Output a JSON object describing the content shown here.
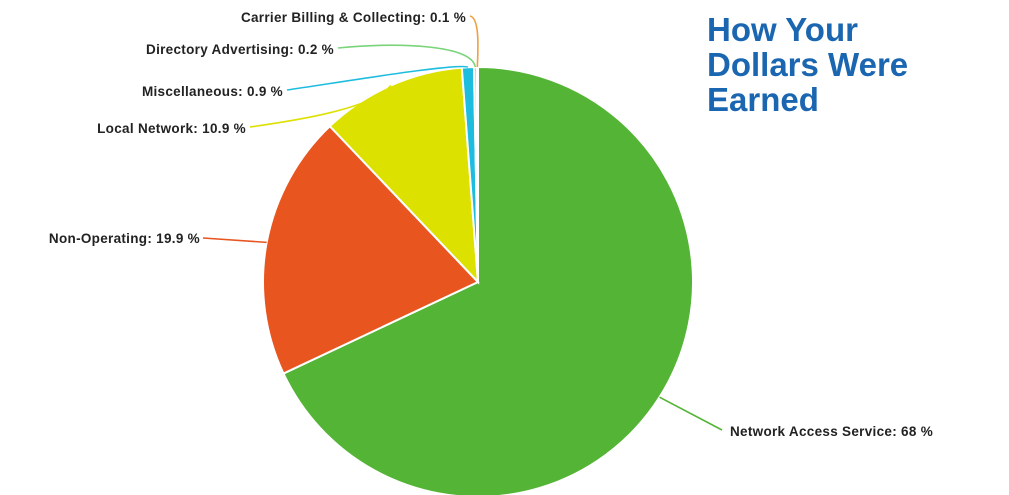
{
  "heading": {
    "line1": "How Your",
    "line2": "Dollars Were",
    "line3": "Earned"
  },
  "chart_data": {
    "type": "pie",
    "title": "How Your Dollars Were Earned",
    "slices": [
      {
        "name": "Network Access Service",
        "value": 68,
        "label": "Network Access Service: 68 %",
        "color": "#54b435"
      },
      {
        "name": "Non-Operating",
        "value": 19.9,
        "label": "Non-Operating: 19.9 %",
        "color": "#e8551f"
      },
      {
        "name": "Local Network",
        "value": 10.9,
        "label": "Local Network: 10.9 %",
        "color": "#dde100"
      },
      {
        "name": "Miscellaneous",
        "value": 0.9,
        "label": "Miscellaneous: 0.9 %",
        "color": "#1ebde0"
      },
      {
        "name": "Directory Advertising",
        "value": 0.2,
        "label": "Directory Advertising: 0.2 %",
        "color": "#7ad47a"
      },
      {
        "name": "Carrier Billing & Collecting",
        "value": 0.1,
        "label": "Carrier Billing & Collecting: 0.1 %",
        "color": "#f0a040"
      }
    ]
  }
}
